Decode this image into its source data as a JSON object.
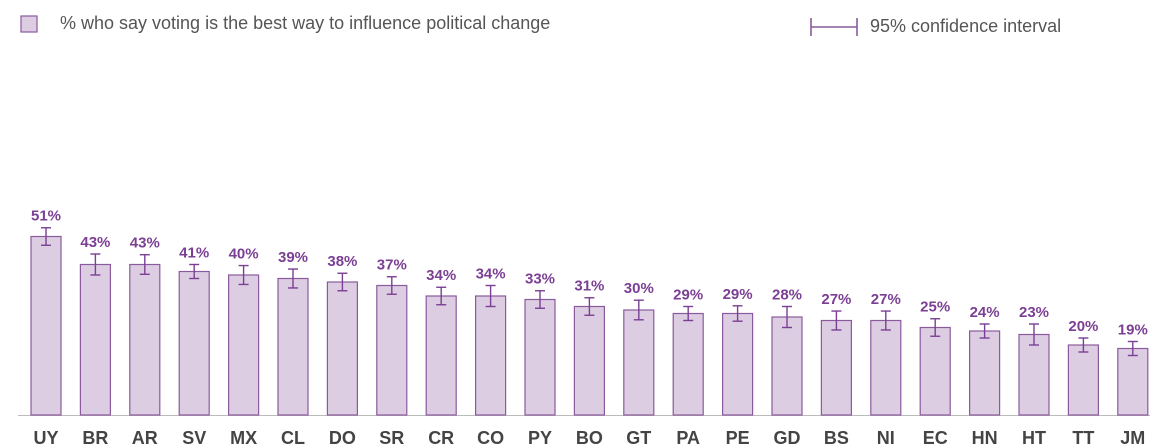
{
  "chart_data": {
    "type": "bar",
    "categories": [
      "UY",
      "BR",
      "AR",
      "SV",
      "MX",
      "CL",
      "DO",
      "SR",
      "CR",
      "CO",
      "PY",
      "BO",
      "GT",
      "PA",
      "PE",
      "GD",
      "BS",
      "NI",
      "EC",
      "HN",
      "HT",
      "TT",
      "JM"
    ],
    "series": [
      {
        "name": "% who say voting is the best way to influence political change",
        "color": "#dccde3",
        "values": [
          51,
          43,
          43,
          41,
          40,
          39,
          38,
          37,
          34,
          34,
          33,
          31,
          30,
          29,
          29,
          28,
          27,
          27,
          25,
          24,
          23,
          20,
          19
        ],
        "value_labels": [
          "51%",
          "43%",
          "43%",
          "41%",
          "40%",
          "39%",
          "38%",
          "37%",
          "34%",
          "34%",
          "33%",
          "31%",
          "30%",
          "29%",
          "29%",
          "28%",
          "27%",
          "27%",
          "25%",
          "24%",
          "23%",
          "20%",
          "19%"
        ],
        "errors": [
          2.5,
          3,
          2.8,
          2,
          2.7,
          2.7,
          2.5,
          2.5,
          2.5,
          3,
          2.5,
          2.5,
          2.8,
          2,
          2.2,
          3,
          2.7,
          2.7,
          2.5,
          2,
          3,
          2,
          2
        ]
      }
    ],
    "error_legend": "95% confidence interval"
  }
}
